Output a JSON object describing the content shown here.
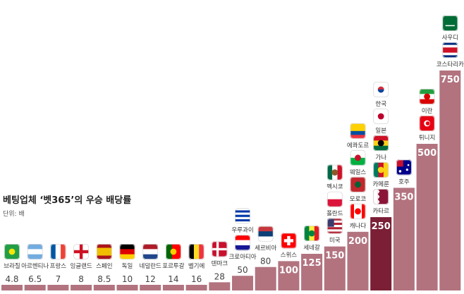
{
  "chart_data": {
    "type": "bar",
    "title": "베팅업체 ‘벳365’의 우승 배당률",
    "unit": "단위: 배",
    "bars": [
      {
        "countries": [
          "브라질"
        ],
        "value": 4.8,
        "label": "4.8"
      },
      {
        "countries": [
          "아르헨티나"
        ],
        "value": 6.5,
        "label": "6.5"
      },
      {
        "countries": [
          "프랑스"
        ],
        "value": 7,
        "label": "7"
      },
      {
        "countries": [
          "잉글랜드"
        ],
        "value": 8,
        "label": "8"
      },
      {
        "countries": [
          "스페인"
        ],
        "value": 8.5,
        "label": "8.5"
      },
      {
        "countries": [
          "독일"
        ],
        "value": 10,
        "label": "10"
      },
      {
        "countries": [
          "네덜란드"
        ],
        "value": 12,
        "label": "12"
      },
      {
        "countries": [
          "포르투갈"
        ],
        "value": 14,
        "label": "14"
      },
      {
        "countries": [
          "벨기에"
        ],
        "value": 16,
        "label": "16"
      },
      {
        "countries": [
          "덴마크"
        ],
        "value": 28,
        "label": "28"
      },
      {
        "countries": [
          "크로아티아",
          "우루과이"
        ],
        "value": 50,
        "label": "50"
      },
      {
        "countries": [
          "세르비아"
        ],
        "value": 80,
        "label": "80"
      },
      {
        "countries": [
          "스위스"
        ],
        "value": 100,
        "label": "100"
      },
      {
        "countries": [
          "세네갈"
        ],
        "value": 125,
        "label": "125"
      },
      {
        "countries": [
          "미국",
          "폴란드",
          "멕시코"
        ],
        "value": 150,
        "label": "150"
      },
      {
        "countries": [
          "캐나다",
          "모로코",
          "웨일스",
          "에콰도르"
        ],
        "value": 200,
        "label": "200"
      },
      {
        "countries": [
          "카타르",
          "카메룬",
          "가나",
          "일본",
          "한국"
        ],
        "value": 250,
        "label": "250",
        "highlight": true
      },
      {
        "countries": [
          "호주"
        ],
        "value": 350,
        "label": "350"
      },
      {
        "countries": [
          "튀니지",
          "이란"
        ],
        "value": 500,
        "label": "500"
      },
      {
        "countries": [
          "코스타리카",
          "사우디"
        ],
        "value": 750,
        "label": "750"
      }
    ],
    "colors": {
      "bar": "#b2737f",
      "highlight": "#7a1f35",
      "bar_value_text": "#ffffff",
      "outside_value_text": "#444444"
    }
  }
}
